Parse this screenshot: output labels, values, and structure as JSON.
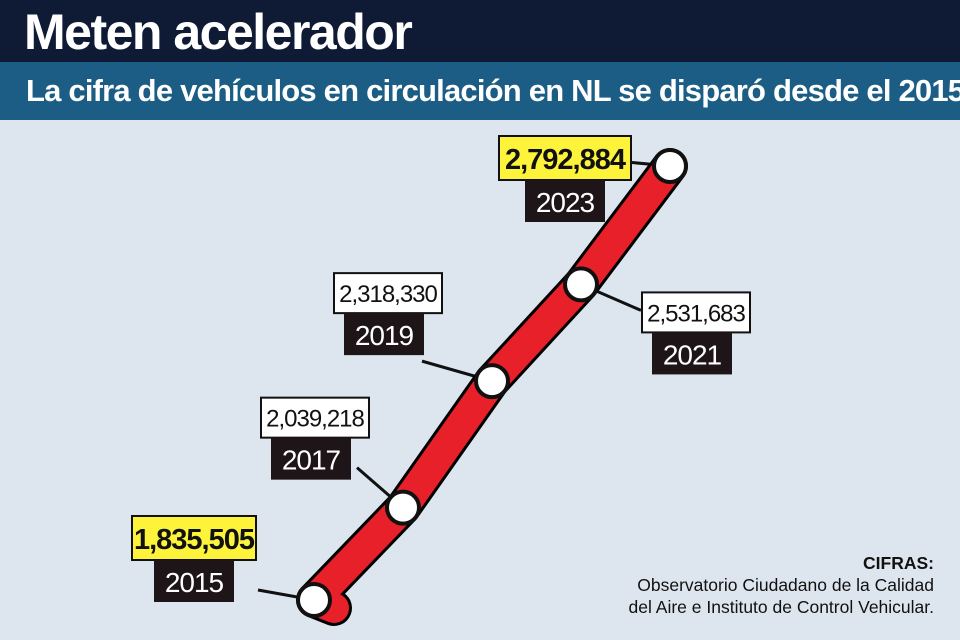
{
  "header": {
    "title": "Meten acelerador",
    "subtitle": "La cifra de vehículos en circulación en NL se disparó desde el 2015."
  },
  "source": {
    "label": "CIFRAS:",
    "line1": "Observatorio Ciudadano de la Calidad",
    "line2": "del Aire e Instituto de Control Vehicular."
  },
  "colors": {
    "line": "#e8202a",
    "highlight_box": "#fcf33a",
    "year_box": "#1e1518",
    "header_dark": "#0f1a35",
    "header_blue": "#1b5d84",
    "background": "#dde6ee"
  },
  "chart_data": {
    "type": "line",
    "title": "Meten acelerador",
    "subtitle": "La cifra de vehículos en circulación en NL se disparó desde el 2015.",
    "x": [
      2015,
      2017,
      2019,
      2021,
      2023
    ],
    "series": [
      {
        "values": [
          1835505,
          2039218,
          2318330,
          2531683,
          2792884
        ],
        "value_labels": [
          "1,835,505",
          "2,039,218",
          "2,318,330",
          "2,531,683",
          "2,792,884"
        ],
        "highlighted": [
          true,
          false,
          false,
          false,
          true
        ]
      }
    ],
    "xlabel": "",
    "ylabel": "",
    "grid": false,
    "legend": "none"
  }
}
